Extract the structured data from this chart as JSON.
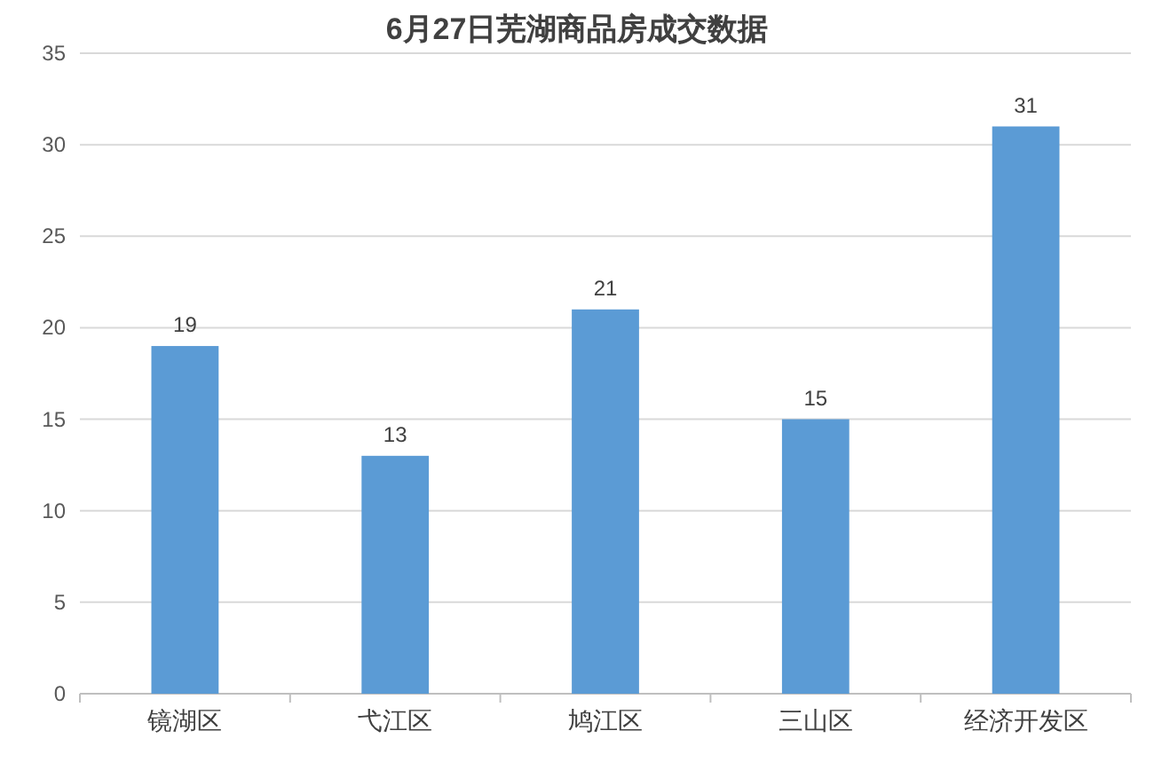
{
  "chart_data": {
    "type": "bar",
    "title": "6月27日芜湖商品房成交数据",
    "categories": [
      "镜湖区",
      "弋江区",
      "鸠江区",
      "三山区",
      "经济开发区"
    ],
    "values": [
      19,
      13,
      21,
      15,
      31
    ],
    "color": "#5b9bd5",
    "ylim": [
      0,
      35
    ],
    "yticks": [
      0,
      5,
      10,
      15,
      20,
      25,
      30,
      35
    ],
    "grid": "y",
    "data_labels": true
  }
}
